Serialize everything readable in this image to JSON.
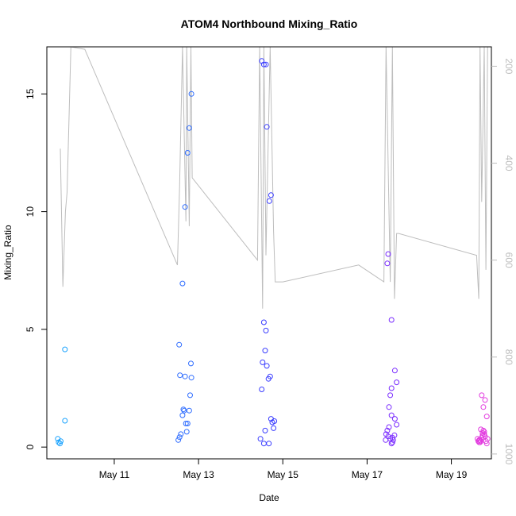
{
  "chart_data": {
    "type": "scatter",
    "title": "ATOM4 Northbound Mixing_Ratio",
    "xlabel": "Date",
    "ylabel": "Mixing_Ratio",
    "x_unit": "day of May",
    "xlim": [
      9.4,
      19.95
    ],
    "ylim": [
      -0.5,
      17
    ],
    "x_ticks": [
      {
        "value": 11,
        "label": "May 11"
      },
      {
        "value": 13,
        "label": "May 13"
      },
      {
        "value": 15,
        "label": "May 15"
      },
      {
        "value": 17,
        "label": "May 17"
      },
      {
        "value": 19,
        "label": "May 19"
      }
    ],
    "y_ticks": [
      0,
      5,
      10,
      15
    ],
    "right_axis": {
      "range_top": 160,
      "range_bottom": 1010,
      "ticks": [
        200,
        400,
        600,
        800,
        1000
      ],
      "color": "#bdbdbd",
      "series_points": [
        [
          9.72,
          370
        ],
        [
          9.78,
          655
        ],
        [
          9.84,
          500
        ],
        [
          9.88,
          460
        ],
        [
          9.97,
          160
        ],
        [
          10.3,
          165
        ],
        [
          12.5,
          610
        ],
        [
          12.55,
          450
        ],
        [
          12.62,
          160
        ],
        [
          12.7,
          520
        ],
        [
          12.72,
          160
        ],
        [
          12.78,
          530
        ],
        [
          12.82,
          160
        ],
        [
          12.85,
          430
        ],
        [
          14.4,
          600
        ],
        [
          14.45,
          160
        ],
        [
          14.52,
          700
        ],
        [
          14.55,
          160
        ],
        [
          14.6,
          590
        ],
        [
          14.7,
          160
        ],
        [
          14.78,
          540
        ],
        [
          14.82,
          645
        ],
        [
          15.0,
          645
        ],
        [
          16.8,
          610
        ],
        [
          17.4,
          645
        ],
        [
          17.45,
          160
        ],
        [
          17.55,
          645
        ],
        [
          17.6,
          160
        ],
        [
          17.65,
          680
        ],
        [
          17.7,
          545
        ],
        [
          17.75,
          545
        ],
        [
          19.6,
          590
        ],
        [
          19.65,
          680
        ],
        [
          19.68,
          160
        ],
        [
          19.72,
          480
        ],
        [
          19.78,
          160
        ],
        [
          19.82,
          620
        ],
        [
          19.86,
          160
        ]
      ]
    },
    "series": [
      {
        "color": "#1aa3ff",
        "points": [
          [
            9.66,
            0.35
          ],
          [
            9.68,
            0.2
          ],
          [
            9.71,
            0.15
          ],
          [
            9.73,
            0.25
          ],
          [
            9.83,
            4.15
          ],
          [
            9.83,
            1.12
          ]
        ]
      },
      {
        "color": "#2f6dff",
        "points": [
          [
            12.52,
            0.3
          ],
          [
            12.55,
            0.42
          ],
          [
            12.58,
            0.55
          ],
          [
            12.62,
            1.35
          ],
          [
            12.64,
            1.6
          ],
          [
            12.66,
            1.55
          ],
          [
            12.68,
            3.0
          ],
          [
            12.7,
            1.0
          ],
          [
            12.72,
            0.65
          ],
          [
            12.74,
            1.0
          ],
          [
            12.78,
            1.55
          ],
          [
            12.8,
            2.2
          ],
          [
            12.56,
            3.05
          ],
          [
            12.83,
            2.95
          ],
          [
            12.82,
            3.55
          ],
          [
            12.54,
            4.35
          ],
          [
            12.62,
            6.95
          ],
          [
            12.68,
            10.2
          ],
          [
            12.74,
            12.5
          ],
          [
            12.78,
            13.55
          ],
          [
            12.83,
            15.0
          ]
        ]
      },
      {
        "color": "#3a3dff",
        "points": [
          [
            14.5,
            16.4
          ],
          [
            14.55,
            16.25
          ],
          [
            14.6,
            16.25
          ],
          [
            14.62,
            13.6
          ],
          [
            14.68,
            10.45
          ],
          [
            14.72,
            10.7
          ],
          [
            14.55,
            5.3
          ],
          [
            14.6,
            4.95
          ],
          [
            14.58,
            4.1
          ],
          [
            14.52,
            3.6
          ],
          [
            14.62,
            3.45
          ],
          [
            14.66,
            2.9
          ],
          [
            14.7,
            3.0
          ],
          [
            14.5,
            2.45
          ],
          [
            14.72,
            1.2
          ],
          [
            14.75,
            1.05
          ],
          [
            14.8,
            1.1
          ],
          [
            14.78,
            0.8
          ],
          [
            14.58,
            0.7
          ],
          [
            14.47,
            0.35
          ],
          [
            14.55,
            0.15
          ],
          [
            14.67,
            0.15
          ]
        ]
      },
      {
        "color": "#7a2cff",
        "points": [
          [
            17.5,
            8.2
          ],
          [
            17.48,
            7.8
          ],
          [
            17.58,
            5.4
          ],
          [
            17.66,
            3.25
          ],
          [
            17.7,
            2.75
          ],
          [
            17.58,
            2.5
          ],
          [
            17.55,
            2.2
          ],
          [
            17.52,
            1.7
          ],
          [
            17.58,
            1.35
          ],
          [
            17.66,
            1.2
          ],
          [
            17.7,
            0.95
          ],
          [
            17.45,
            0.55
          ],
          [
            17.48,
            0.7
          ],
          [
            17.52,
            0.85
          ],
          [
            17.5,
            0.45
          ],
          [
            17.55,
            0.35
          ],
          [
            17.6,
            0.4
          ],
          [
            17.65,
            0.5
          ],
          [
            17.44,
            0.3
          ],
          [
            17.58,
            0.15
          ],
          [
            17.6,
            0.2
          ],
          [
            17.62,
            0.3
          ]
        ]
      },
      {
        "color": "#e23adf",
        "points": [
          [
            19.62,
            0.35
          ],
          [
            19.64,
            0.25
          ],
          [
            19.66,
            0.3
          ],
          [
            19.68,
            0.2
          ],
          [
            19.7,
            0.25
          ],
          [
            19.72,
            0.4
          ],
          [
            19.74,
            0.6
          ],
          [
            19.76,
            0.7
          ],
          [
            19.78,
            0.55
          ],
          [
            19.8,
            0.45
          ],
          [
            19.82,
            0.25
          ],
          [
            19.84,
            0.15
          ],
          [
            19.86,
            0.35
          ],
          [
            19.72,
            2.2
          ],
          [
            19.8,
            2.0
          ],
          [
            19.76,
            1.7
          ],
          [
            19.84,
            1.3
          ],
          [
            19.7,
            0.75
          ],
          [
            19.74,
            0.5
          ],
          [
            19.78,
            0.65
          ],
          [
            19.68,
            0.3
          ],
          [
            19.66,
            0.2
          ]
        ]
      }
    ]
  }
}
